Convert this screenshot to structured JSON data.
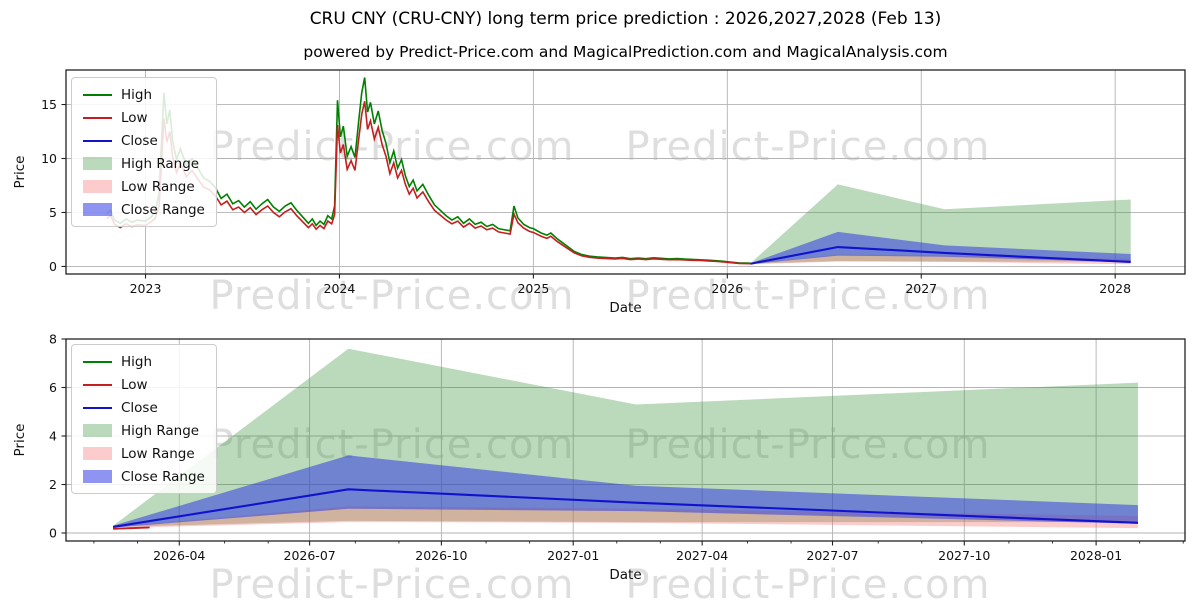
{
  "header": {
    "title": "CRU CNY (CRU-CNY) long term price prediction : 2026,2027,2028 (Feb 13)",
    "subtitle": "powered by Predict-Price.com and MagicalPrediction.com and MagicalAnalysis.com"
  },
  "watermark": {
    "text": "Predict-Price.com"
  },
  "colors": {
    "high_line": "#008000",
    "low_line": "#c41e1e",
    "close_line": "#1212cc",
    "high_range_fill": "rgba(60,145,60,0.35)",
    "low_range_fill": "rgba(245,110,110,0.35)",
    "close_range_fill": "rgba(50,60,225,0.55)",
    "grid": "#b3b3b3",
    "spine": "#222222",
    "tick_text": "#111111"
  },
  "legend": {
    "items": [
      {
        "label": "High",
        "type": "line",
        "color": "#008000"
      },
      {
        "label": "Low",
        "type": "line",
        "color": "#c41e1e"
      },
      {
        "label": "Close",
        "type": "line",
        "color": "#1212cc"
      },
      {
        "label": "High Range",
        "type": "fill",
        "color": "rgba(60,145,60,0.35)"
      },
      {
        "label": "Low Range",
        "type": "fill",
        "color": "rgba(245,110,110,0.35)"
      },
      {
        "label": "Close Range",
        "type": "fill",
        "color": "rgba(50,60,225,0.55)"
      }
    ]
  },
  "chart_data": [
    {
      "type": "line",
      "name": "long-term-history-and-prediction",
      "xlabel": "Date",
      "ylabel": "Price",
      "xlim": [
        2022.59,
        2028.36
      ],
      "ylim": [
        -0.7,
        18.2
      ],
      "grid": true,
      "legend_position": "upper left",
      "yticks": [
        0,
        5,
        10,
        15
      ],
      "xticks": [
        {
          "pos": 2023,
          "label": "2023"
        },
        {
          "pos": 2024,
          "label": "2024"
        },
        {
          "pos": 2025,
          "label": "2025"
        },
        {
          "pos": 2026,
          "label": "2026"
        },
        {
          "pos": 2027,
          "label": "2027"
        },
        {
          "pos": 2028,
          "label": "2028"
        }
      ],
      "series": {
        "history_high_low": [
          [
            2022.8,
            4.9,
            4.45
          ],
          [
            2022.82,
            5.2,
            4.7
          ],
          [
            2022.84,
            4.3,
            3.9
          ],
          [
            2022.87,
            4.0,
            3.6
          ],
          [
            2022.9,
            4.4,
            3.95
          ],
          [
            2022.93,
            4.1,
            3.7
          ],
          [
            2022.96,
            4.3,
            3.85
          ],
          [
            2023.0,
            4.2,
            3.8
          ],
          [
            2023.03,
            4.6,
            4.15
          ],
          [
            2023.05,
            5.0,
            4.45
          ],
          [
            2023.07,
            6.8,
            5.6
          ],
          [
            2023.085,
            12.5,
            10.3
          ],
          [
            2023.095,
            16.1,
            13.7
          ],
          [
            2023.11,
            13.2,
            11.5
          ],
          [
            2023.125,
            14.5,
            12.5
          ],
          [
            2023.14,
            11.6,
            10.1
          ],
          [
            2023.16,
            9.9,
            8.7
          ],
          [
            2023.18,
            10.9,
            9.6
          ],
          [
            2023.21,
            9.4,
            8.3
          ],
          [
            2023.24,
            10.0,
            8.9
          ],
          [
            2023.27,
            9.1,
            8.1
          ],
          [
            2023.3,
            8.2,
            7.35
          ],
          [
            2023.33,
            7.9,
            7.1
          ],
          [
            2023.36,
            7.3,
            6.55
          ],
          [
            2023.39,
            6.3,
            5.7
          ],
          [
            2023.42,
            6.7,
            6.05
          ],
          [
            2023.45,
            5.8,
            5.25
          ],
          [
            2023.48,
            6.1,
            5.5
          ],
          [
            2023.51,
            5.5,
            5.0
          ],
          [
            2023.54,
            6.0,
            5.45
          ],
          [
            2023.57,
            5.3,
            4.8
          ],
          [
            2023.6,
            5.8,
            5.25
          ],
          [
            2023.63,
            6.2,
            5.6
          ],
          [
            2023.66,
            5.5,
            5.0
          ],
          [
            2023.69,
            5.1,
            4.6
          ],
          [
            2023.72,
            5.6,
            5.05
          ],
          [
            2023.75,
            5.9,
            5.35
          ],
          [
            2023.78,
            5.2,
            4.7
          ],
          [
            2023.81,
            4.6,
            4.15
          ],
          [
            2023.84,
            4.0,
            3.6
          ],
          [
            2023.86,
            4.4,
            3.95
          ],
          [
            2023.88,
            3.8,
            3.45
          ],
          [
            2023.9,
            4.2,
            3.8
          ],
          [
            2023.92,
            3.9,
            3.5
          ],
          [
            2023.94,
            4.7,
            4.2
          ],
          [
            2023.96,
            4.4,
            3.95
          ],
          [
            2023.975,
            5.6,
            4.8
          ],
          [
            2023.99,
            15.4,
            13.1
          ],
          [
            2024.005,
            12.0,
            10.5
          ],
          [
            2024.02,
            13.0,
            11.3
          ],
          [
            2024.04,
            10.2,
            9.0
          ],
          [
            2024.06,
            11.1,
            9.8
          ],
          [
            2024.08,
            10.1,
            8.9
          ],
          [
            2024.1,
            13.6,
            11.9
          ],
          [
            2024.115,
            16.1,
            14.1
          ],
          [
            2024.13,
            17.5,
            15.3
          ],
          [
            2024.145,
            14.3,
            12.7
          ],
          [
            2024.16,
            15.2,
            13.5
          ],
          [
            2024.18,
            13.2,
            11.8
          ],
          [
            2024.2,
            14.4,
            12.9
          ],
          [
            2024.22,
            12.6,
            11.3
          ],
          [
            2024.24,
            11.4,
            10.2
          ],
          [
            2024.26,
            9.6,
            8.6
          ],
          [
            2024.28,
            10.7,
            9.6
          ],
          [
            2024.3,
            9.1,
            8.2
          ],
          [
            2024.32,
            9.9,
            8.9
          ],
          [
            2024.34,
            8.4,
            7.6
          ],
          [
            2024.36,
            7.4,
            6.7
          ],
          [
            2024.38,
            8.0,
            7.25
          ],
          [
            2024.4,
            7.0,
            6.35
          ],
          [
            2024.43,
            7.6,
            6.9
          ],
          [
            2024.46,
            6.6,
            6.0
          ],
          [
            2024.49,
            5.7,
            5.2
          ],
          [
            2024.52,
            5.2,
            4.75
          ],
          [
            2024.55,
            4.7,
            4.3
          ],
          [
            2024.58,
            4.3,
            3.95
          ],
          [
            2024.61,
            4.6,
            4.2
          ],
          [
            2024.64,
            4.0,
            3.65
          ],
          [
            2024.67,
            4.4,
            4.0
          ],
          [
            2024.7,
            3.9,
            3.55
          ],
          [
            2024.73,
            4.1,
            3.75
          ],
          [
            2024.76,
            3.7,
            3.4
          ],
          [
            2024.79,
            3.9,
            3.55
          ],
          [
            2024.82,
            3.5,
            3.2
          ],
          [
            2024.85,
            3.4,
            3.1
          ],
          [
            2024.88,
            3.3,
            3.0
          ],
          [
            2024.9,
            5.6,
            4.85
          ],
          [
            2024.92,
            4.5,
            4.05
          ],
          [
            2024.95,
            3.9,
            3.55
          ],
          [
            2024.98,
            3.6,
            3.25
          ],
          [
            2025.0,
            3.5,
            3.15
          ],
          [
            2025.04,
            3.1,
            2.8
          ],
          [
            2025.07,
            2.9,
            2.6
          ],
          [
            2025.09,
            3.1,
            2.8
          ],
          [
            2025.12,
            2.6,
            2.35
          ],
          [
            2025.15,
            2.2,
            1.98
          ],
          [
            2025.18,
            1.8,
            1.62
          ],
          [
            2025.21,
            1.4,
            1.26
          ],
          [
            2025.25,
            1.1,
            0.98
          ],
          [
            2025.29,
            0.95,
            0.85
          ],
          [
            2025.33,
            0.88,
            0.78
          ],
          [
            2025.38,
            0.82,
            0.73
          ],
          [
            2025.42,
            0.78,
            0.69
          ],
          [
            2025.46,
            0.84,
            0.74
          ],
          [
            2025.5,
            0.72,
            0.64
          ],
          [
            2025.54,
            0.78,
            0.69
          ],
          [
            2025.58,
            0.72,
            0.64
          ],
          [
            2025.62,
            0.8,
            0.71
          ],
          [
            2025.66,
            0.75,
            0.66
          ],
          [
            2025.7,
            0.7,
            0.62
          ],
          [
            2025.74,
            0.73,
            0.64
          ],
          [
            2025.78,
            0.68,
            0.6
          ],
          [
            2025.82,
            0.65,
            0.57
          ],
          [
            2025.86,
            0.62,
            0.55
          ],
          [
            2025.9,
            0.58,
            0.51
          ],
          [
            2025.94,
            0.54,
            0.47
          ],
          [
            2025.98,
            0.48,
            0.42
          ],
          [
            2026.02,
            0.4,
            0.35
          ],
          [
            2026.06,
            0.33,
            0.28
          ],
          [
            2026.12,
            0.3,
            0.25
          ]
        ],
        "prediction": {
          "x": [
            2026.12,
            2026.57,
            2027.12,
            2028.08
          ],
          "high_max": [
            0.3,
            7.6,
            5.3,
            6.2
          ],
          "high_min": [
            0.25,
            0.5,
            0.45,
            0.45
          ],
          "low_max": [
            0.25,
            1.1,
            1.0,
            0.7
          ],
          "low_min": [
            0.2,
            0.45,
            0.42,
            0.2
          ],
          "close_max": [
            0.3,
            3.2,
            1.95,
            1.15
          ],
          "close_min": [
            0.22,
            1.0,
            0.9,
            0.38
          ],
          "close": [
            0.25,
            1.8,
            1.25,
            0.42
          ]
        }
      }
    },
    {
      "type": "line",
      "name": "prediction-detail-2026-2028",
      "xlabel": "Date",
      "ylabel": "Price",
      "xlim": [
        2026.03,
        2028.17
      ],
      "ylim": [
        -0.33,
        8.0
      ],
      "grid": true,
      "legend_position": "upper left",
      "yticks": [
        0,
        2,
        4,
        6,
        8
      ],
      "xticks": [
        {
          "pos": 2026.2466,
          "label": "2026-04"
        },
        {
          "pos": 2026.4959,
          "label": "2026-07"
        },
        {
          "pos": 2026.7479,
          "label": "2026-10"
        },
        {
          "pos": 2027.0,
          "label": "2027-01"
        },
        {
          "pos": 2027.2466,
          "label": "2027-04"
        },
        {
          "pos": 2027.4959,
          "label": "2027-07"
        },
        {
          "pos": 2027.7479,
          "label": "2027-10"
        },
        {
          "pos": 2028.0,
          "label": "2028-01"
        }
      ],
      "minor_xtick_step_years": 0.08333,
      "series": {
        "low_stub": [
          [
            2026.12,
            0.17
          ],
          [
            2026.19,
            0.23
          ]
        ],
        "prediction": {
          "x": [
            2026.12,
            2026.57,
            2027.12,
            2028.08
          ],
          "high_max": [
            0.3,
            7.6,
            5.3,
            6.2
          ],
          "high_min": [
            0.25,
            0.5,
            0.45,
            0.45
          ],
          "low_max": [
            0.25,
            1.1,
            1.0,
            0.7
          ],
          "low_min": [
            0.2,
            0.45,
            0.42,
            0.2
          ],
          "close_max": [
            0.3,
            3.2,
            1.95,
            1.15
          ],
          "close_min": [
            0.22,
            1.0,
            0.9,
            0.38
          ],
          "close": [
            0.25,
            1.8,
            1.25,
            0.42
          ]
        }
      }
    }
  ]
}
